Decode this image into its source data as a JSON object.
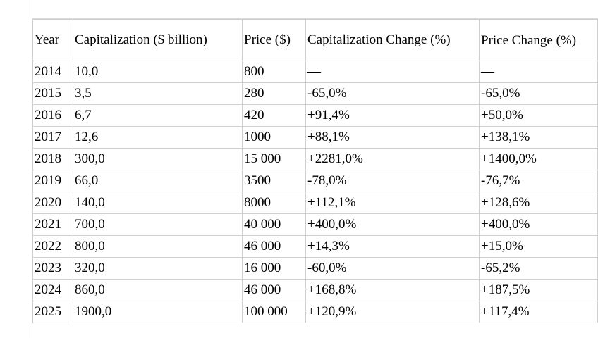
{
  "table": {
    "headers": {
      "year": "Year",
      "capitalization": "Capitalization ($ billion)",
      "price": "Price ($)",
      "cap_change": "Capitalization Change (%)",
      "price_change": "Price Change (%)"
    },
    "rows": [
      {
        "year": "2014",
        "capitalization": "10,0",
        "price": "800",
        "cap_change": "—",
        "price_change": "—"
      },
      {
        "year": "2015",
        "capitalization": "3,5",
        "price": "280",
        "cap_change": "-65,0%",
        "price_change": "-65,0%"
      },
      {
        "year": "2016",
        "capitalization": "6,7",
        "price": "420",
        "cap_change": "+91,4%",
        "price_change": "+50,0%"
      },
      {
        "year": "2017",
        "capitalization": "12,6",
        "price": "1000",
        "cap_change": "+88,1%",
        "price_change": "+138,1%"
      },
      {
        "year": "2018",
        "capitalization": "300,0",
        "price": "15 000",
        "cap_change": "+2281,0%",
        "price_change": "+1400,0%"
      },
      {
        "year": "2019",
        "capitalization": "66,0",
        "price": "3500",
        "cap_change": "-78,0%",
        "price_change": "-76,7%"
      },
      {
        "year": "2020",
        "capitalization": "140,0",
        "price": "8000",
        "cap_change": "+112,1%",
        "price_change": "+128,6%"
      },
      {
        "year": "2021",
        "capitalization": "700,0",
        "price": "40 000",
        "cap_change": "+400,0%",
        "price_change": "+400,0%"
      },
      {
        "year": "2022",
        "capitalization": "800,0",
        "price": "46 000",
        "cap_change": "+14,3%",
        "price_change": "+15,0%"
      },
      {
        "year": "2023",
        "capitalization": "320,0",
        "price": "16 000",
        "cap_change": "-60,0%",
        "price_change": "-65,2%"
      },
      {
        "year": "2024",
        "capitalization": "860,0",
        "price": "46 000",
        "cap_change": "+168,8%",
        "price_change": "+187,5%"
      },
      {
        "year": "2025",
        "capitalization": "1900,0",
        "price": "100 000",
        "cap_change": "+120,9%",
        "price_change": "+117,4%"
      }
    ]
  }
}
